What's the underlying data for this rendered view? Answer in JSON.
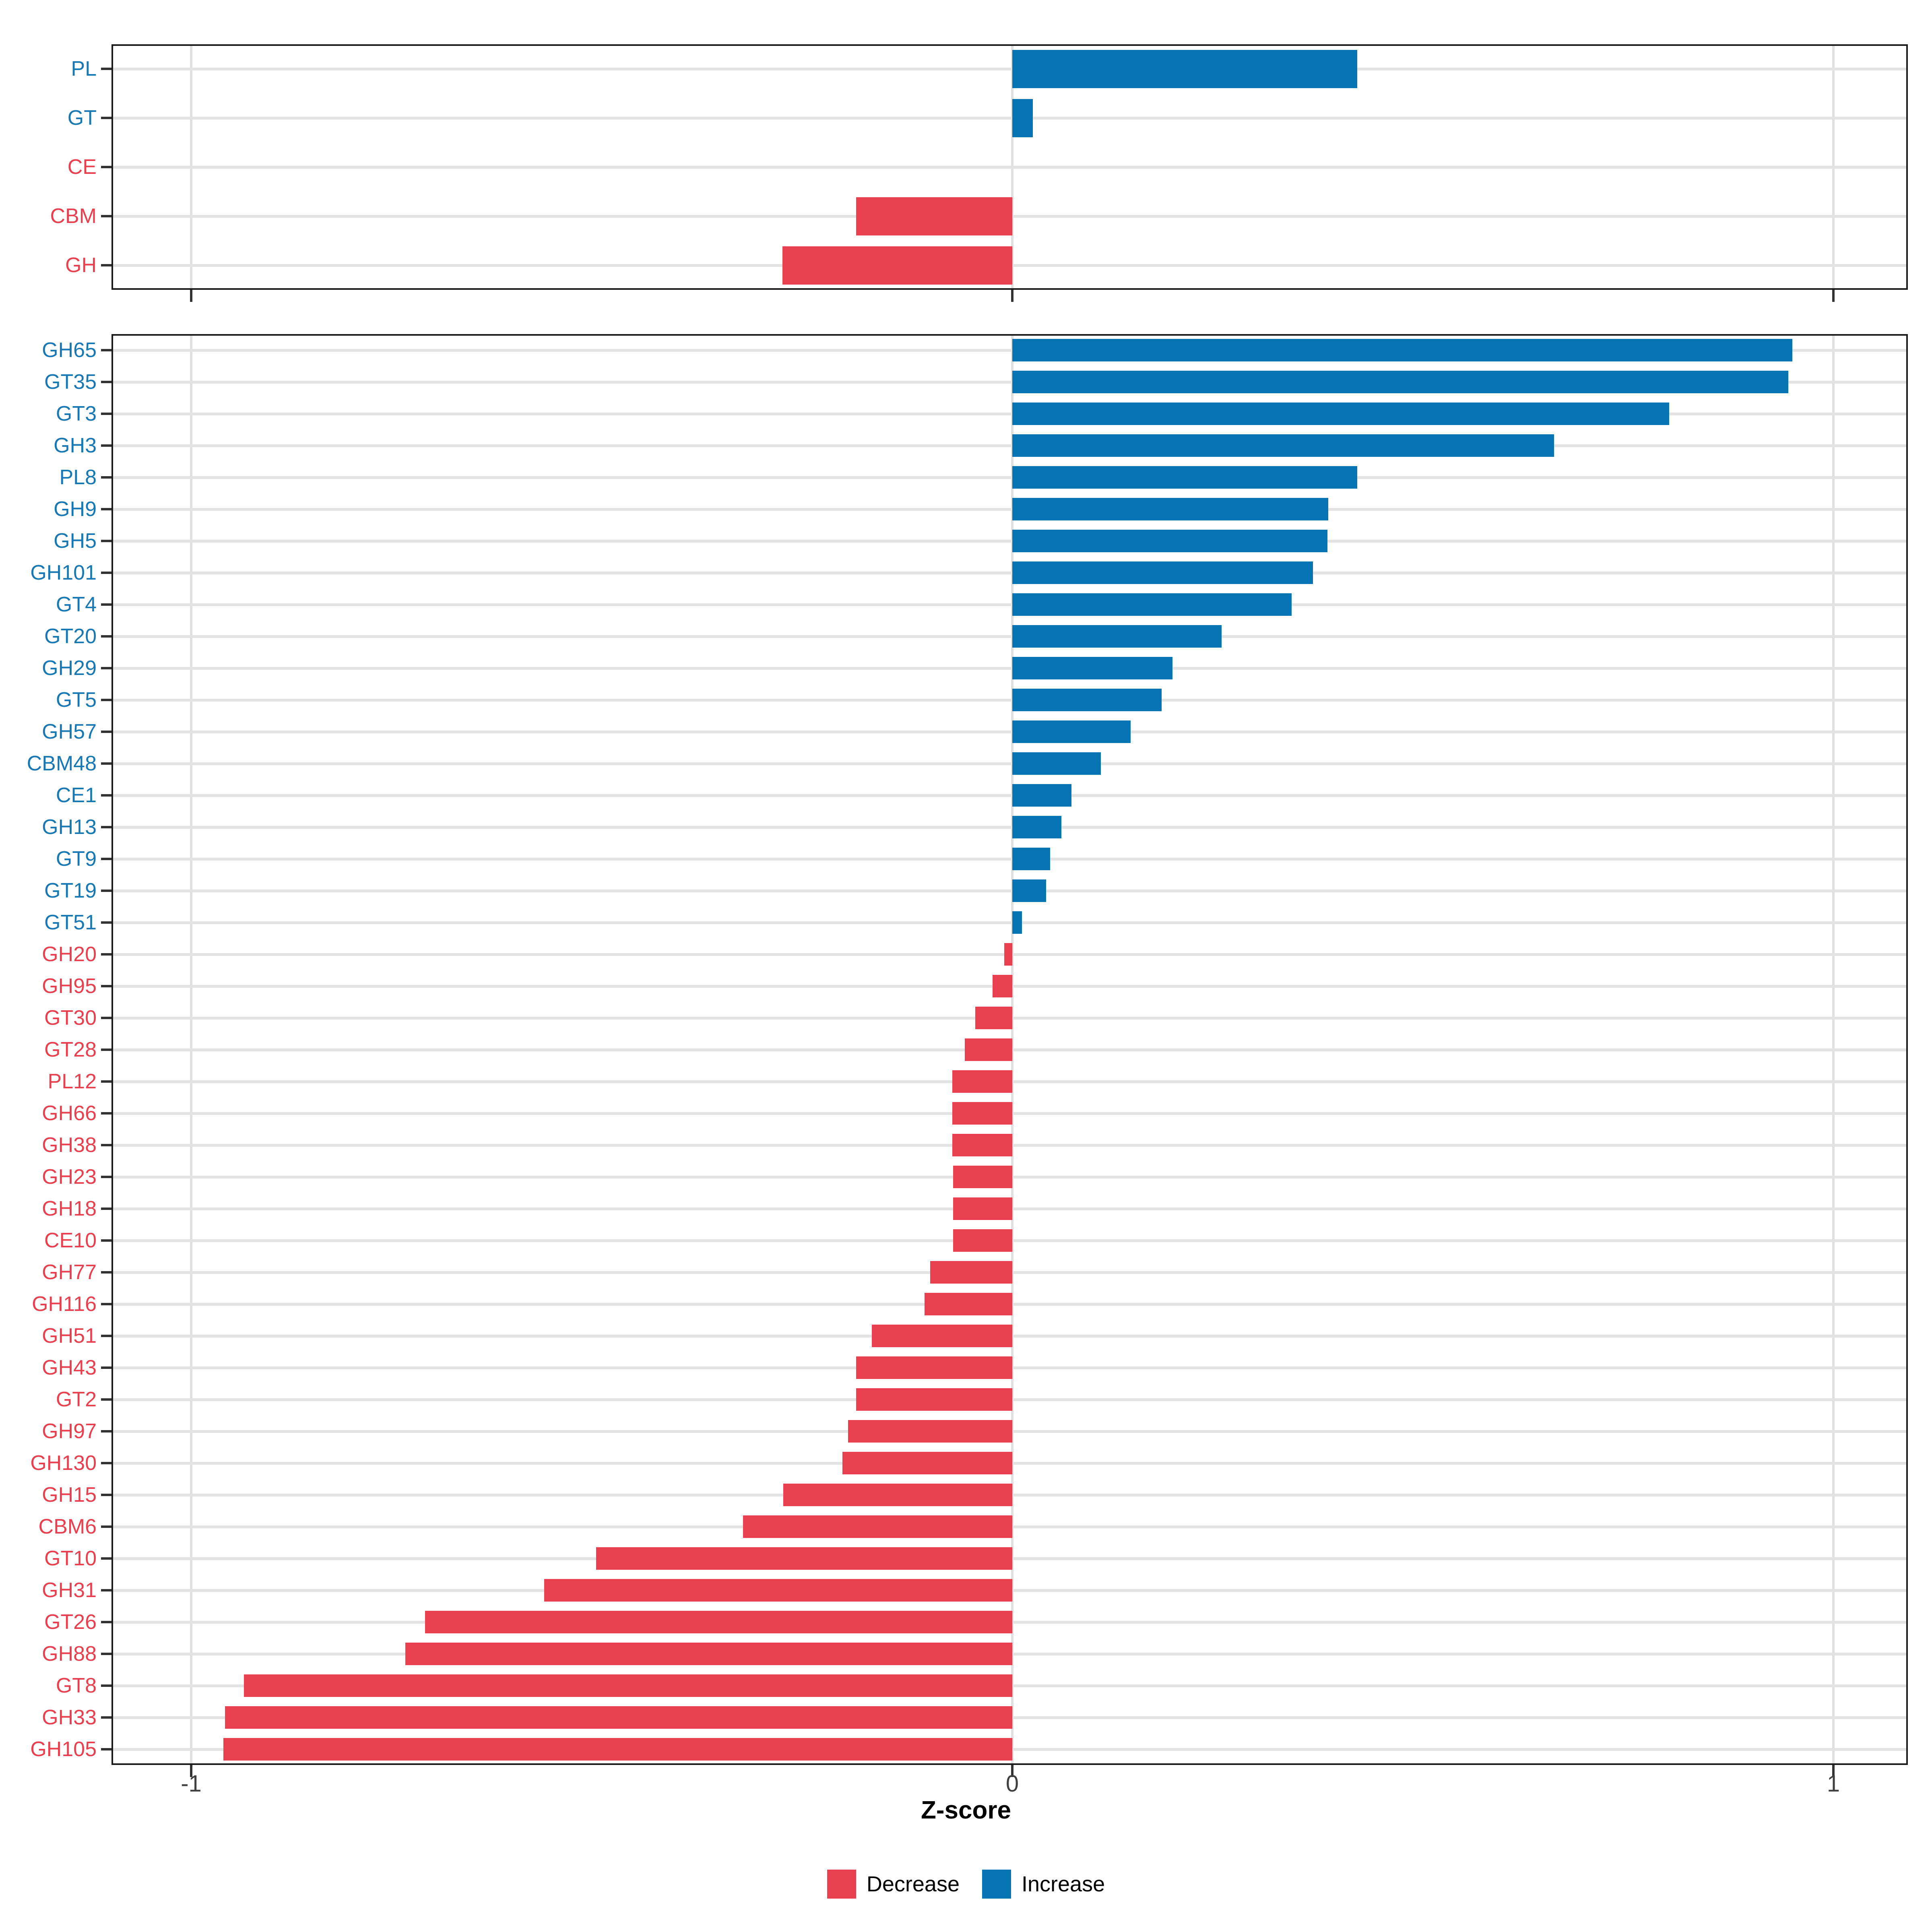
{
  "chart_data": {
    "type": "bar",
    "orientation": "horizontal",
    "title": "",
    "xlabel": "Z-score",
    "ylabel": "",
    "xlim": [
      -1.1,
      1.09
    ],
    "x_ticks": [
      -1,
      0,
      1
    ],
    "grid": "on",
    "legend": {
      "position": "bottom",
      "entries": [
        {
          "label": "Decrease",
          "color": "#E8404E"
        },
        {
          "label": "Increase",
          "color": "#0674B2"
        }
      ]
    },
    "panels": [
      {
        "name": "enzyme-class",
        "categories": [
          "PL",
          "GT",
          "CE",
          "CBM",
          "GH"
        ],
        "values": [
          0.42,
          0.025,
          0,
          -0.19,
          -0.28
        ]
      },
      {
        "name": "enzyme-family",
        "categories": [
          "GH65",
          "GT35",
          "GT3",
          "GH3",
          "PL8",
          "GH9",
          "GH5",
          "GH101",
          "GT4",
          "GT20",
          "GH29",
          "GT5",
          "GH57",
          "CBM48",
          "CE1",
          "GH13",
          "GT9",
          "GT19",
          "GT51",
          "GH20",
          "GH95",
          "GT30",
          "GT28",
          "PL12",
          "GH66",
          "GH38",
          "GH23",
          "GH18",
          "CE10",
          "GH77",
          "GH116",
          "GH51",
          "GH43",
          "GT2",
          "GH97",
          "GH130",
          "GH15",
          "CBM6",
          "GT10",
          "GH31",
          "GT26",
          "GH88",
          "GT8",
          "GH33",
          "GH105"
        ],
        "values": [
          0.95,
          0.945,
          0.8,
          0.66,
          0.42,
          0.385,
          0.384,
          0.366,
          0.34,
          0.255,
          0.195,
          0.182,
          0.144,
          0.108,
          0.072,
          0.06,
          0.046,
          0.041,
          0.012,
          -0.01,
          -0.024,
          -0.045,
          -0.058,
          -0.073,
          -0.073,
          -0.073,
          -0.072,
          -0.072,
          -0.072,
          -0.1,
          -0.107,
          -0.171,
          -0.19,
          -0.19,
          -0.2,
          -0.207,
          -0.279,
          -0.328,
          -0.507,
          -0.57,
          -0.715,
          -0.739,
          -0.936,
          -0.959,
          -0.961
        ]
      }
    ]
  },
  "colors": {
    "increase_bar": "#0674B2",
    "decrease_bar": "#E8404E",
    "increase_label": "#1778B4",
    "decrease_label": "#E8404E",
    "grid": "#E3E3E3",
    "axis_text": "#404040",
    "panel_border": "#1A1A1A",
    "tick": "#333333"
  }
}
